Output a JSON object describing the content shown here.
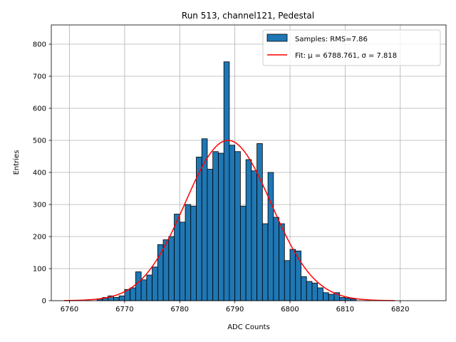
{
  "chart_data": {
    "type": "bar",
    "title": "Run 513, channel121, Pedestal",
    "xlabel": "ADC Counts",
    "ylabel": "Entries",
    "xlim": [
      6756.7,
      6828.3
    ],
    "ylim": [
      0,
      860
    ],
    "xticks": [
      6760,
      6770,
      6780,
      6790,
      6800,
      6810,
      6820
    ],
    "yticks": [
      0,
      100,
      200,
      300,
      400,
      500,
      600,
      700,
      800
    ],
    "grid": true,
    "legend_position": "top-right",
    "bar_color": "#1f77b4",
    "fit_color": "#ff0000",
    "histogram": {
      "name": "Samples: RMS=7.86",
      "bin_start": 6765,
      "bin_width": 1,
      "counts": [
        5,
        10,
        15,
        10,
        15,
        35,
        40,
        90,
        65,
        80,
        105,
        175,
        190,
        200,
        270,
        245,
        300,
        295,
        448,
        505,
        410,
        465,
        460,
        745,
        485,
        465,
        295,
        440,
        405,
        490,
        240,
        400,
        260,
        240,
        125,
        160,
        155,
        75,
        60,
        55,
        40,
        25,
        20,
        25,
        10,
        8,
        5
      ]
    },
    "fit": {
      "name": "Fit: μ = 6788.761, σ = 7.818",
      "mu": 6788.761,
      "sigma": 7.818,
      "amplitude": 500,
      "x_range": [
        6759,
        6819
      ]
    }
  }
}
